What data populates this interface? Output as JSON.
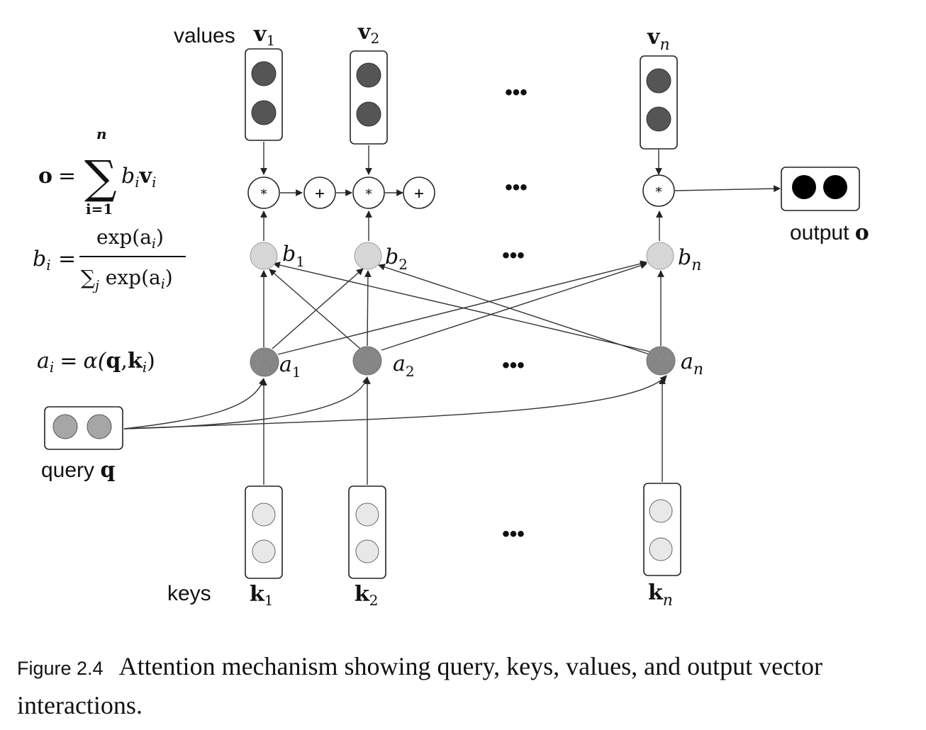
{
  "labels": {
    "values": "values",
    "keys": "keys",
    "query": "query",
    "query_symbol": "q",
    "output": "output",
    "output_symbol": "o"
  },
  "value_labels": [
    {
      "base": "v",
      "sub": "1"
    },
    {
      "base": "v",
      "sub": "2"
    },
    {
      "base": "v",
      "sub": "n"
    }
  ],
  "key_labels": [
    {
      "base": "k",
      "sub": "1"
    },
    {
      "base": "k",
      "sub": "2"
    },
    {
      "base": "k",
      "sub": "n"
    }
  ],
  "b_labels": [
    {
      "base": "b",
      "sub": "1"
    },
    {
      "base": "b",
      "sub": "2"
    },
    {
      "base": "b",
      "sub": "n"
    }
  ],
  "a_labels": [
    {
      "base": "a",
      "sub": "1"
    },
    {
      "base": "a",
      "sub": "2"
    },
    {
      "base": "a",
      "sub": "n"
    }
  ],
  "ops": {
    "multiply": "*",
    "add": "+"
  },
  "ellipsis": "•••",
  "equations": {
    "output": {
      "lhs": "o",
      "eq": "=",
      "sum": "∑",
      "upper": "n",
      "lower": "i=1",
      "term_b": "b",
      "term_b_sub": "i",
      "term_v": "v",
      "term_v_sub": "i"
    },
    "softmax": {
      "lhs": "b",
      "lhs_sub": "i",
      "eq": "=",
      "num": "exp(a",
      "num_sub": "i",
      "num_close": ")",
      "den_sum": "∑",
      "den_sub": "j",
      "den": " exp(a",
      "den_sub2": "i",
      "den_close": ")"
    },
    "score": {
      "lhs": "a",
      "lhs_sub": "i",
      "eq": "=",
      "func": "α(",
      "q": "q",
      "comma": ",",
      "k": "k",
      "k_sub": "i",
      "close": ")"
    }
  },
  "caption": {
    "label": "Figure 2.4",
    "text": "Attention mechanism showing query, keys, values, and output vector interactions."
  },
  "colors": {
    "value_dot": "#555555",
    "key_dot": "#e8e8e8",
    "query_dot": "#a6a6a6",
    "b_node": "#dadada",
    "a_node": "#6a6a6a",
    "output_dot": "#000000",
    "line": "#333333"
  }
}
